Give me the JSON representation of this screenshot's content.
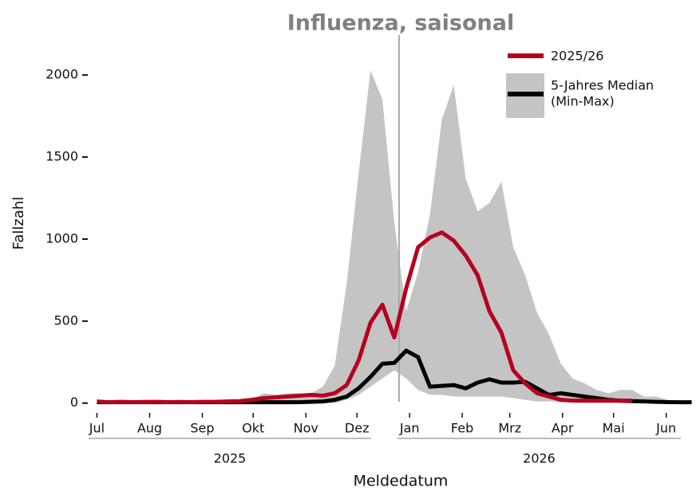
{
  "chart_data": {
    "type": "line",
    "title": "Influenza, saisonal",
    "xlabel": "Meldedatum",
    "ylabel": "Fallzahl",
    "x": [
      0,
      1,
      2,
      3,
      4,
      5,
      6,
      7,
      8,
      9,
      10,
      11,
      12,
      13,
      14,
      15,
      16,
      17,
      18,
      19,
      20,
      21,
      22,
      23,
      24,
      25,
      26,
      27,
      28,
      29,
      30,
      31,
      32,
      33,
      34,
      35,
      36,
      37,
      38,
      39,
      40,
      41,
      42,
      43,
      44,
      45,
      46,
      47,
      48,
      49,
      50
    ],
    "xlim": [
      -0.7,
      50.7
    ],
    "xticks": [
      {
        "value": 0,
        "label": "Jul"
      },
      {
        "value": 4.43,
        "label": "Aug"
      },
      {
        "value": 8.86,
        "label": "Sep"
      },
      {
        "value": 13.14,
        "label": "Okt"
      },
      {
        "value": 17.57,
        "label": "Nov"
      },
      {
        "value": 21.86,
        "label": "Dez"
      },
      {
        "value": 26.29,
        "label": "Jan"
      },
      {
        "value": 30.71,
        "label": "Feb"
      },
      {
        "value": 34.71,
        "label": "Mrz"
      },
      {
        "value": 39.14,
        "label": "Apr"
      },
      {
        "value": 43.43,
        "label": "Mai"
      },
      {
        "value": 47.86,
        "label": "Jun"
      }
    ],
    "years": [
      "2025",
      "2026"
    ],
    "vline": 25.4,
    "ylim": [
      -50,
      2200
    ],
    "yticks": [
      0,
      500,
      1000,
      1500,
      2000
    ],
    "legend": "upper right",
    "series": [
      {
        "name": "2025/26",
        "color": "#b5001f",
        "values": [
          10,
          5,
          8,
          6,
          7,
          8,
          6,
          7,
          6,
          8,
          8,
          10,
          12,
          20,
          30,
          35,
          40,
          45,
          50,
          45,
          60,
          110,
          260,
          490,
          600,
          400,
          700,
          950,
          1010,
          1040,
          990,
          900,
          780,
          560,
          430,
          200,
          120,
          60,
          40,
          20,
          15,
          15,
          15,
          15,
          15,
          15,
          null,
          null,
          null,
          null,
          null
        ]
      },
      {
        "name": "5-Jahres Median",
        "range_label": "(Min-Max)",
        "color": "#000000",
        "band_color": "#c4c4c4",
        "values": [
          5,
          5,
          5,
          5,
          5,
          5,
          5,
          5,
          5,
          5,
          5,
          5,
          5,
          5,
          5,
          5,
          5,
          5,
          8,
          10,
          20,
          40,
          90,
          160,
          240,
          245,
          320,
          280,
          100,
          105,
          110,
          90,
          125,
          145,
          125,
          125,
          130,
          90,
          50,
          60,
          50,
          40,
          30,
          20,
          15,
          12,
          10,
          8,
          6,
          5,
          5
        ],
        "min": [
          0,
          0,
          0,
          0,
          0,
          0,
          0,
          0,
          0,
          0,
          0,
          0,
          0,
          0,
          0,
          0,
          0,
          0,
          0,
          0,
          0,
          20,
          50,
          100,
          150,
          200,
          150,
          80,
          50,
          50,
          40,
          40,
          40,
          40,
          40,
          30,
          20,
          10,
          10,
          5,
          5,
          0,
          0,
          0,
          0,
          0,
          0,
          0,
          0,
          0,
          0
        ],
        "max": [
          15,
          15,
          15,
          15,
          15,
          15,
          15,
          15,
          15,
          15,
          15,
          15,
          15,
          20,
          60,
          50,
          60,
          60,
          60,
          100,
          230,
          730,
          1400,
          2030,
          1850,
          1100,
          560,
          800,
          1150,
          1730,
          1940,
          1370,
          1170,
          1220,
          1350,
          950,
          780,
          550,
          420,
          240,
          150,
          120,
          80,
          60,
          80,
          80,
          40,
          40,
          20,
          10,
          10
        ]
      }
    ]
  }
}
